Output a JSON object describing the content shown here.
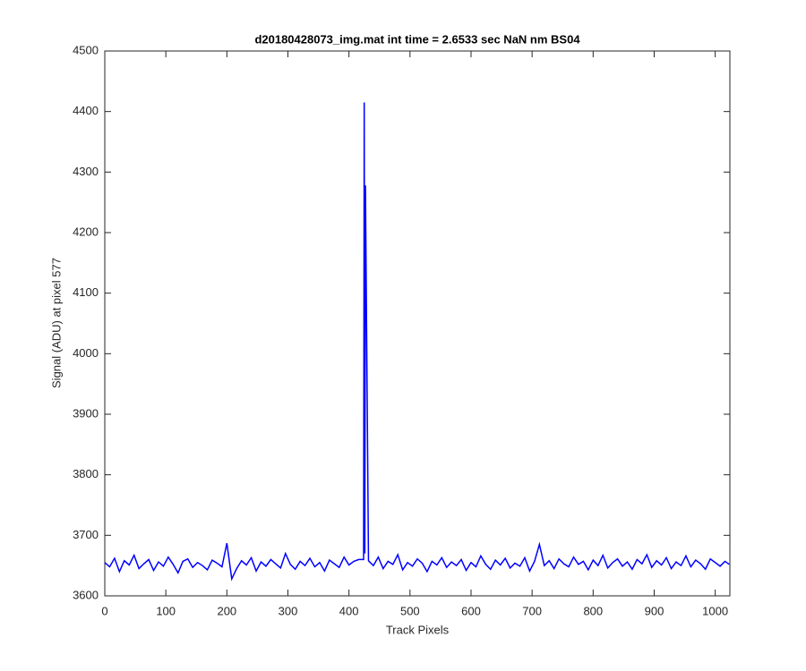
{
  "chart_data": {
    "type": "line",
    "title": "d20180428073_img.mat int time = 2.6533 sec  NaN nm BS04",
    "x_label": "Track Pixels",
    "y_label": "Signal (ADU) at pixel 577",
    "xlim": [
      0,
      1024
    ],
    "ylim": [
      3600,
      4500
    ],
    "xticks": [
      0,
      100,
      200,
      300,
      400,
      500,
      600,
      700,
      800,
      900,
      1000
    ],
    "yticks": [
      3600,
      3700,
      3800,
      3900,
      4000,
      4100,
      4200,
      4300,
      4400,
      4500
    ],
    "grid": false,
    "x": [
      0,
      8,
      16,
      24,
      32,
      40,
      48,
      56,
      64,
      72,
      80,
      88,
      96,
      104,
      112,
      120,
      128,
      136,
      144,
      152,
      160,
      168,
      176,
      184,
      192,
      200,
      208,
      216,
      224,
      232,
      240,
      248,
      256,
      264,
      272,
      280,
      288,
      296,
      304,
      312,
      320,
      328,
      336,
      344,
      352,
      360,
      368,
      376,
      384,
      392,
      400,
      408,
      416,
      424,
      425,
      426,
      427,
      432,
      440,
      448,
      456,
      464,
      472,
      480,
      488,
      496,
      504,
      512,
      520,
      528,
      536,
      544,
      552,
      560,
      568,
      576,
      584,
      592,
      600,
      608,
      616,
      624,
      632,
      640,
      648,
      656,
      664,
      672,
      680,
      688,
      696,
      704,
      712,
      720,
      728,
      736,
      744,
      752,
      760,
      768,
      776,
      784,
      792,
      800,
      808,
      816,
      824,
      832,
      840,
      848,
      856,
      864,
      872,
      880,
      888,
      896,
      904,
      912,
      920,
      928,
      936,
      944,
      952,
      960,
      968,
      976,
      984,
      992,
      1000,
      1008,
      1016,
      1023
    ],
    "series": [
      {
        "color": "#0000ff",
        "values": [
          3655,
          3648,
          3662,
          3640,
          3658,
          3651,
          3667,
          3645,
          3653,
          3660,
          3642,
          3656,
          3649,
          3664,
          3652,
          3638,
          3657,
          3661,
          3647,
          3655,
          3650,
          3643,
          3659,
          3654,
          3648,
          3687,
          3628,
          3645,
          3658,
          3651,
          3663,
          3641,
          3656,
          3649,
          3660,
          3653,
          3646,
          3670,
          3652,
          3644,
          3657,
          3650,
          3662,
          3648,
          3655,
          3641,
          3659,
          3653,
          3647,
          3664,
          3651,
          3657,
          3660,
          3660,
          4415,
          3670,
          4278,
          3658,
          3650,
          3664,
          3645,
          3657,
          3652,
          3668,
          3643,
          3655,
          3649,
          3661,
          3654,
          3640,
          3657,
          3651,
          3663,
          3647,
          3656,
          3650,
          3660,
          3642,
          3655,
          3648,
          3666,
          3652,
          3644,
          3659,
          3651,
          3662,
          3646,
          3654,
          3649,
          3663,
          3641,
          3657,
          3685,
          3650,
          3658,
          3645,
          3661,
          3653,
          3648,
          3664,
          3652,
          3657,
          3643,
          3659,
          3650,
          3667,
          3646,
          3655,
          3661,
          3649,
          3656,
          3644,
          3660,
          3653,
          3668,
          3647,
          3658,
          3651,
          3663,
          3645,
          3656,
          3650,
          3666,
          3648,
          3659,
          3653,
          3644,
          3661,
          3655,
          3649,
          3657,
          3652
        ]
      }
    ]
  }
}
